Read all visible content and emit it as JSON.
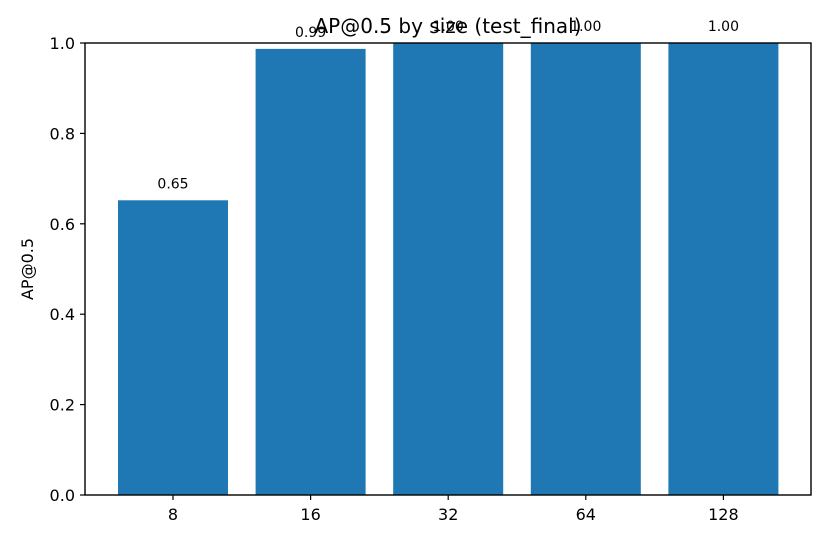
{
  "chart_data": {
    "type": "bar",
    "title": "AP@0.5 by size (test_final)",
    "xlabel": "",
    "ylabel": "AP@0.5",
    "categories": [
      "8",
      "16",
      "32",
      "64",
      "128"
    ],
    "values": [
      0.652,
      0.987,
      1.0,
      1.0,
      1.0
    ],
    "data_labels": [
      "0.65",
      "0.99",
      "1.00",
      "1.00",
      "1.00"
    ],
    "ylim": [
      0,
      1.0
    ],
    "yticks": [
      0.0,
      0.2,
      0.4,
      0.6,
      0.8,
      1.0
    ],
    "ytick_labels": [
      "0.0",
      "0.2",
      "0.4",
      "0.6",
      "0.8",
      "1.0"
    ],
    "grid": false,
    "bar_color": "#1f77b4"
  }
}
